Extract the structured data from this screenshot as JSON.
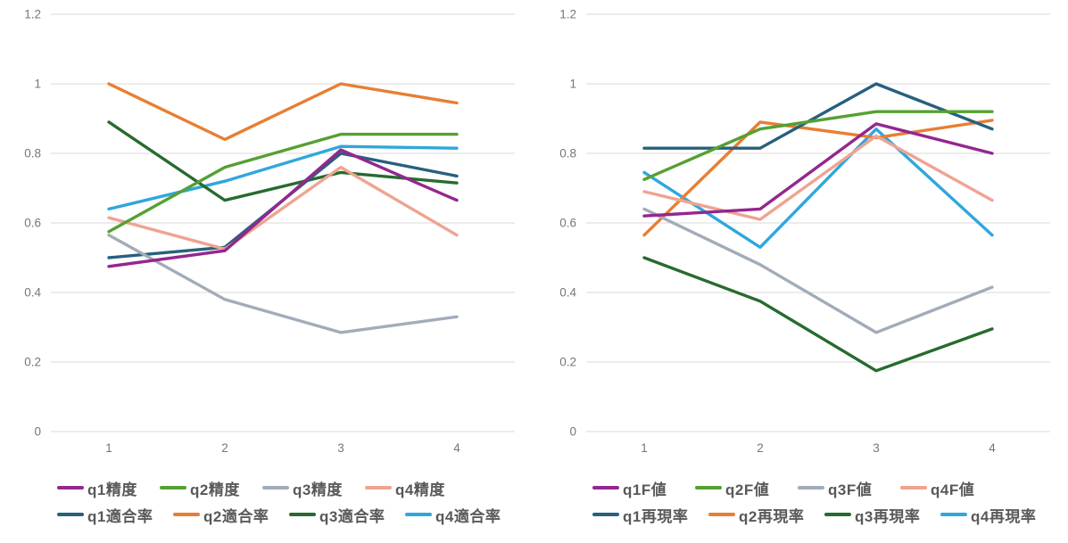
{
  "page": {
    "background_color": "#ffffff",
    "gridline_color": "#dadada",
    "tick_label_color": "#767676",
    "legend_text_color": "#595959"
  },
  "chart_data": [
    {
      "type": "line",
      "title": "",
      "xlabel": "",
      "ylabel": "",
      "categories": [
        "1",
        "2",
        "3",
        "4"
      ],
      "ylim": [
        0,
        1.2
      ],
      "yticks": [
        0,
        0.2,
        0.4,
        0.6,
        0.8,
        1,
        1.2
      ],
      "grid": true,
      "legend_position": "bottom",
      "series": [
        {
          "name": "q1精度",
          "color": "#93278F",
          "values": [
            0.475,
            0.52,
            0.81,
            0.665
          ]
        },
        {
          "name": "q2精度",
          "color": "#55A033",
          "values": [
            0.575,
            0.76,
            0.855,
            0.855
          ]
        },
        {
          "name": "q3精度",
          "color": "#A2ACB9",
          "values": [
            0.565,
            0.38,
            0.285,
            0.33
          ]
        },
        {
          "name": "q4精度",
          "color": "#EEA491",
          "values": [
            0.615,
            0.525,
            0.76,
            0.565
          ]
        },
        {
          "name": "q1適合率",
          "color": "#27607E",
          "values": [
            0.5,
            0.53,
            0.8,
            0.735
          ]
        },
        {
          "name": "q2適合率",
          "color": "#E87E33",
          "values": [
            1.0,
            0.84,
            1.0,
            0.945
          ]
        },
        {
          "name": "q3適合率",
          "color": "#276B2E",
          "values": [
            0.89,
            0.665,
            0.745,
            0.715
          ]
        },
        {
          "name": "q4適合率",
          "color": "#2FA7DC",
          "values": [
            0.64,
            0.72,
            0.82,
            0.815
          ]
        }
      ]
    },
    {
      "type": "line",
      "title": "",
      "xlabel": "",
      "ylabel": "",
      "categories": [
        "1",
        "2",
        "3",
        "4"
      ],
      "ylim": [
        0,
        1.2
      ],
      "yticks": [
        0,
        0.2,
        0.4,
        0.6,
        0.8,
        1,
        1.2
      ],
      "grid": true,
      "legend_position": "bottom",
      "series": [
        {
          "name": "q1F値",
          "color": "#93278F",
          "values": [
            0.62,
            0.64,
            0.885,
            0.8
          ]
        },
        {
          "name": "q2F値",
          "color": "#55A033",
          "values": [
            0.725,
            0.87,
            0.92,
            0.92
          ]
        },
        {
          "name": "q3F値",
          "color": "#A2ACB9",
          "values": [
            0.64,
            0.48,
            0.285,
            0.415
          ]
        },
        {
          "name": "q4F値",
          "color": "#EEA491",
          "values": [
            0.69,
            0.61,
            0.85,
            0.665
          ]
        },
        {
          "name": "q1再現率",
          "color": "#27607E",
          "values": [
            0.815,
            0.815,
            1.0,
            0.87
          ]
        },
        {
          "name": "q2再現率",
          "color": "#E87E33",
          "values": [
            0.565,
            0.89,
            0.845,
            0.895
          ]
        },
        {
          "name": "q3再現率",
          "color": "#276B2E",
          "values": [
            0.5,
            0.375,
            0.175,
            0.295
          ]
        },
        {
          "name": "q4再現率",
          "color": "#2FA7DC",
          "values": [
            0.745,
            0.53,
            0.87,
            0.565
          ]
        }
      ]
    }
  ]
}
